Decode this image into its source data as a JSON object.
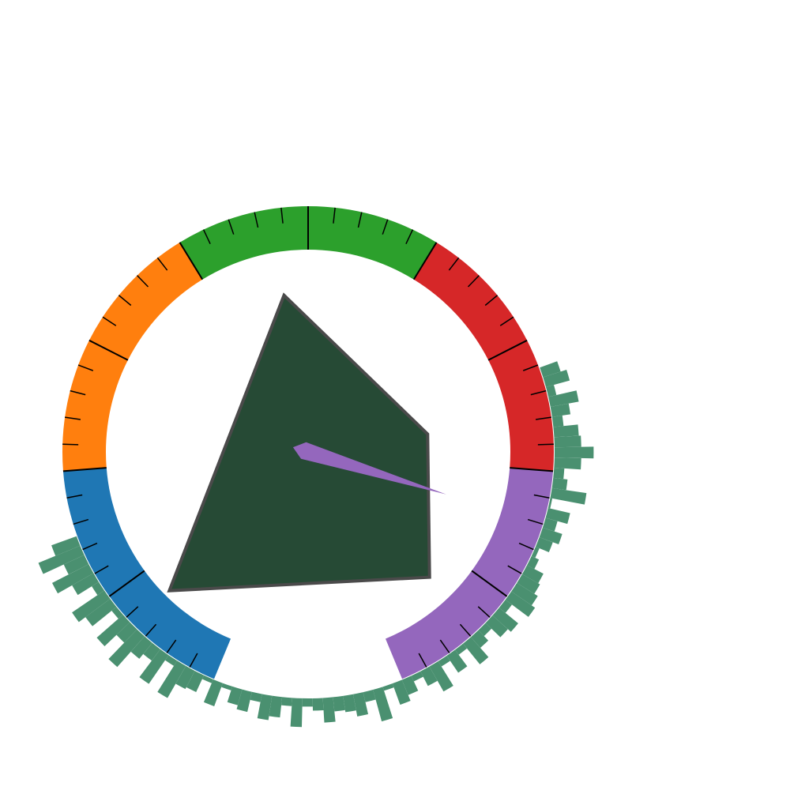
{
  "chart_data": {
    "type": "gauge",
    "title": "",
    "bands": [
      {
        "from": 0,
        "to": 20,
        "color": "#1f77b4"
      },
      {
        "from": 20,
        "to": 40,
        "color": "#ff7f0e"
      },
      {
        "from": 40,
        "to": 60,
        "color": "#2ca02c"
      },
      {
        "from": 60,
        "to": 80,
        "color": "#d62728"
      },
      {
        "from": 80,
        "to": 100,
        "color": "#9467bd"
      }
    ],
    "range": [
      0,
      100
    ],
    "major_tick_step": 10,
    "minor_tick_step": 2,
    "needle_value": 84,
    "needle_color": "#9467bd",
    "polygon": {
      "fill": "#264a35",
      "stroke": "#4a4a4a",
      "points": [
        [
          -5,
          32.5
        ],
        [
          24.8,
          3.7
        ],
        [
          25.2,
          -26
        ],
        [
          -28.8,
          -28.8
        ]
      ]
    },
    "histogram": {
      "color": "#4a9070",
      "angle_range": [
        -160,
        20
      ],
      "values": [
        13,
        22,
        11,
        20,
        12,
        4,
        19,
        15,
        3,
        17,
        9,
        20,
        10,
        7,
        17,
        3,
        18,
        10,
        9,
        2,
        12,
        2,
        8,
        10,
        4,
        12,
        10,
        4,
        14,
        4,
        6,
        12,
        7,
        8,
        11,
        5,
        16,
        2,
        11,
        8,
        3,
        8,
        14,
        3,
        10,
        3,
        13,
        7,
        4,
        10,
        12,
        4,
        14,
        12,
        10,
        9,
        4,
        2,
        7,
        10,
        6,
        11,
        1,
        17,
        7,
        5,
        13,
        19,
        13,
        12,
        5,
        9,
        14,
        4,
        12,
        9
      ]
    }
  }
}
